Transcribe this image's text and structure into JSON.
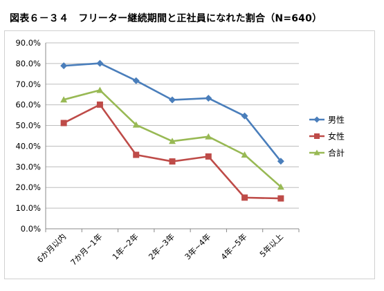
{
  "figure": {
    "title": "図表６－３４　フリーター継続期間と正社員になれた割合（N=640）"
  },
  "chart_data": {
    "type": "line",
    "title": "図表６－３４　フリーター継続期間と正社員になれた割合（N=640）",
    "xlabel": "",
    "ylabel": "",
    "categories": [
      "6か月以内",
      "7か月~1年",
      "1年~2年",
      "2年~3年",
      "3年~4年",
      "4年~5年",
      "5年以上"
    ],
    "ylim": [
      0,
      90
    ],
    "yticks": [
      "0.0%",
      "10.0%",
      "20.0%",
      "30.0%",
      "40.0%",
      "50.0%",
      "60.0%",
      "70.0%",
      "80.0%",
      "90.0%"
    ],
    "grid": true,
    "legend_position": "right",
    "series": [
      {
        "name": "男性",
        "color": "#4a7ebb",
        "marker": "diamond",
        "values": [
          78.9,
          80.1,
          71.7,
          62.4,
          63.2,
          54.6,
          32.7
        ]
      },
      {
        "name": "女性",
        "color": "#be4b48",
        "marker": "square",
        "values": [
          51.2,
          60.1,
          35.8,
          32.6,
          35.0,
          15.1,
          14.7
        ]
      },
      {
        "name": "合計",
        "color": "#98b954",
        "marker": "triangle",
        "values": [
          62.5,
          67.1,
          50.3,
          42.4,
          44.6,
          35.8,
          20.3
        ]
      }
    ]
  }
}
